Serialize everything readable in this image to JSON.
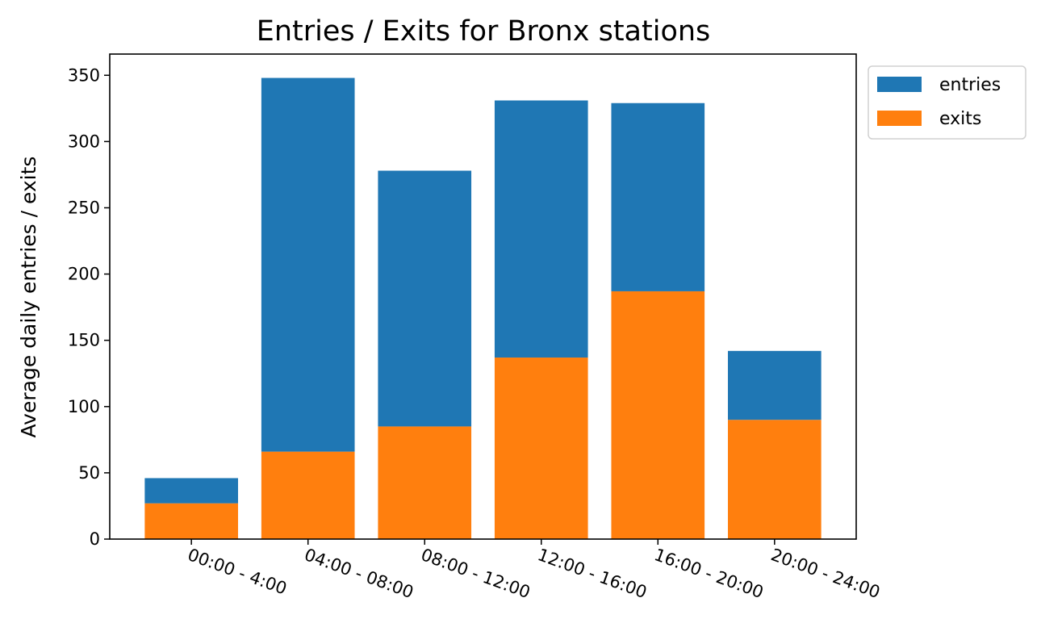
{
  "chart_data": {
    "type": "bar",
    "stacked": true,
    "title": "Entries / Exits for Bronx stations",
    "xlabel": "",
    "ylabel": "Average daily entries / exits",
    "categories": [
      "00:00 - 4:00",
      "04:00 - 08:00",
      "08:00 - 12:00",
      "12:00 - 16:00",
      "16:00 - 20:00",
      "20:00 - 24:00"
    ],
    "series": [
      {
        "name": "exits",
        "values": [
          27,
          66,
          85,
          137,
          187,
          90
        ],
        "color": "#ff7f0e"
      },
      {
        "name": "entries",
        "values": [
          19,
          282,
          193,
          194,
          142,
          52
        ],
        "color": "#1f77b4"
      }
    ],
    "ylim": [
      0,
      366
    ],
    "yticks": [
      0,
      50,
      100,
      150,
      200,
      250,
      300,
      350
    ],
    "grid": false,
    "legend": {
      "placement": "upper-right-outside",
      "entries": [
        {
          "label": "entries",
          "color": "#1f77b4"
        },
        {
          "label": "exits",
          "color": "#ff7f0e"
        }
      ]
    }
  }
}
